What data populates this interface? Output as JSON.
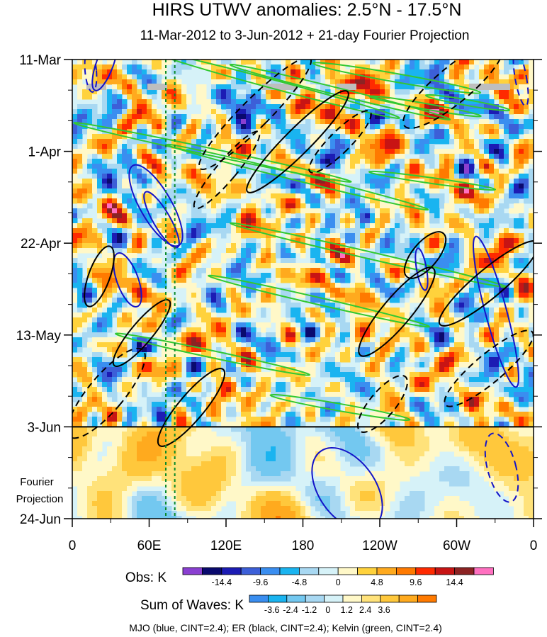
{
  "chart_data": {
    "type": "heatmap",
    "title": "HIRS UTWV anomalies: 2.5°N - 17.5°N",
    "subtitle": "11-Mar-2012 to 3-Jun-2012 + 21-day Fourier Projection",
    "x_ticks": [
      {
        "label": "0",
        "lon": 0
      },
      {
        "label": "60E",
        "lon": 60
      },
      {
        "label": "120E",
        "lon": 120
      },
      {
        "label": "180",
        "lon": 180
      },
      {
        "label": "120W",
        "lon": 240
      },
      {
        "label": "60W",
        "lon": 300
      },
      {
        "label": "0",
        "lon": 360
      }
    ],
    "xlim": [
      0,
      360
    ],
    "y_ticks": [
      {
        "label": "11-Mar",
        "day": 0
      },
      {
        "label": "1-Apr",
        "day": 21
      },
      {
        "label": "22-Apr",
        "day": 42
      },
      {
        "label": "13-May",
        "day": 63
      },
      {
        "label": "3-Jun",
        "day": 84
      },
      {
        "label": "24-Jun",
        "day": 105
      }
    ],
    "ylim": [
      0,
      105
    ],
    "projection_start_day": 84,
    "projection_label_1": "Fourier",
    "projection_label_2": "Projection",
    "reference_lines_lon": [
      73,
      80
    ],
    "obs_legend": {
      "title": "Obs: K",
      "labels": [
        "-14.4",
        "-9.6",
        "-4.8",
        "0",
        "4.8",
        "9.6",
        "14.4"
      ],
      "colors": [
        "#8a3fd1",
        "#0a0a6e",
        "#1c1cb4",
        "#3c5fd8",
        "#3a8ef0",
        "#1ab4f0",
        "#a8d8f2",
        "#d6f2f8",
        "#fff8c8",
        "#ffd23c",
        "#ffaa1e",
        "#ff7a00",
        "#ff2a00",
        "#c81414",
        "#8c2323",
        "#ff70c0"
      ]
    },
    "waves_legend": {
      "title": "Sum of Waves: K",
      "labels": [
        "-3.6",
        "-2.4",
        "-1.2",
        "0",
        "1.2",
        "2.4",
        "3.6"
      ],
      "colors": [
        "#3a8ef0",
        "#1ab4f0",
        "#73c8f0",
        "#a8d8f2",
        "#d6f2f8",
        "#fff8c8",
        "#ffe27a",
        "#ffc83c",
        "#ffaa1e",
        "#ff7a00"
      ]
    },
    "footer": "MJO (blue, CINT=2.4); ER (black, CINT=2.4); Kelvin (green, CINT=2.4)",
    "series_colors": {
      "mjo": "#1414c8",
      "er": "#000000",
      "kelvin": "#32c832",
      "grid_missing": "#bebebe"
    }
  }
}
